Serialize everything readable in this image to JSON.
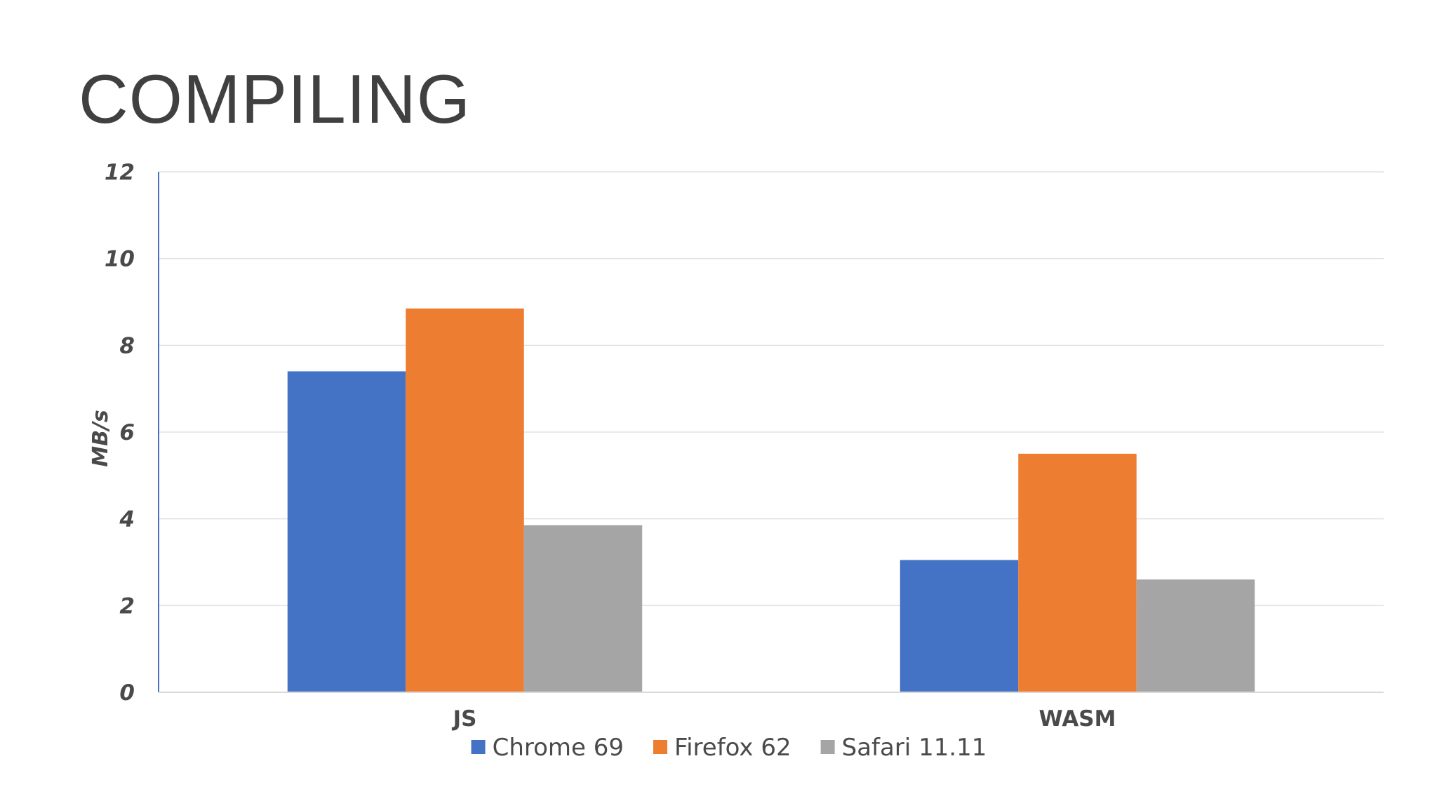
{
  "slide": {
    "title": "COMPILING"
  },
  "chart_data": {
    "type": "bar",
    "title": "",
    "xlabel": "",
    "ylabel": "MB/s",
    "ylim": [
      0,
      12
    ],
    "yticks": [
      0,
      2,
      4,
      6,
      8,
      10,
      12
    ],
    "grid": true,
    "legend_position": "bottom",
    "categories": [
      "JS",
      "WASM"
    ],
    "series": [
      {
        "name": "Chrome 69",
        "color": "#4472C4",
        "values": [
          7.4,
          3.05
        ]
      },
      {
        "name": "Firefox 62",
        "color": "#ED7D31",
        "values": [
          8.85,
          5.5
        ]
      },
      {
        "name": "Safari 11.11",
        "color": "#A5A5A5",
        "values": [
          3.85,
          2.6
        ]
      }
    ]
  }
}
